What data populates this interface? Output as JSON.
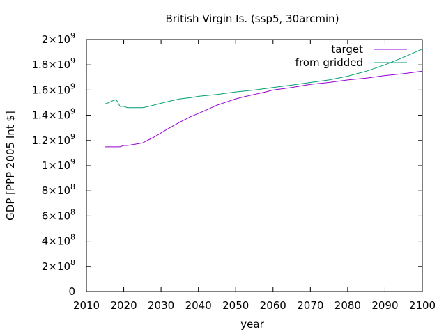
{
  "chart_data": {
    "type": "line",
    "title": "British Virgin Is. (ssp5, 30arcmin)",
    "xlabel": "year",
    "ylabel": "GDP [PPP 2005 Int $]",
    "xlim": [
      2010,
      2100
    ],
    "ylim": [
      0,
      2000000000
    ],
    "xticks": [
      2010,
      2020,
      2030,
      2040,
      2050,
      2060,
      2070,
      2080,
      2090,
      2100
    ],
    "yticks": [
      {
        "value": 0,
        "mantissa": "0",
        "exp": ""
      },
      {
        "value": 200000000,
        "mantissa": "2×10",
        "exp": "8"
      },
      {
        "value": 400000000,
        "mantissa": "4×10",
        "exp": "8"
      },
      {
        "value": 600000000,
        "mantissa": "6×10",
        "exp": "8"
      },
      {
        "value": 800000000,
        "mantissa": "8×10",
        "exp": "8"
      },
      {
        "value": 1000000000,
        "mantissa": "1×10",
        "exp": "9"
      },
      {
        "value": 1200000000,
        "mantissa": "1.2×10",
        "exp": "9"
      },
      {
        "value": 1400000000,
        "mantissa": "1.4×10",
        "exp": "9"
      },
      {
        "value": 1600000000,
        "mantissa": "1.6×10",
        "exp": "9"
      },
      {
        "value": 1800000000,
        "mantissa": "1.8×10",
        "exp": "9"
      },
      {
        "value": 2000000000,
        "mantissa": "2×10",
        "exp": "9"
      }
    ],
    "grid": false,
    "legend_position": "top-right",
    "series": [
      {
        "name": "target",
        "color": "#9400d3",
        "x": [
          2015,
          2016,
          2017,
          2018,
          2019,
          2020,
          2021,
          2022,
          2023,
          2024,
          2025,
          2026,
          2027,
          2028,
          2030,
          2032,
          2035,
          2038,
          2040,
          2042,
          2045,
          2048,
          2050,
          2052,
          2055,
          2058,
          2060,
          2063,
          2065,
          2070,
          2075,
          2080,
          2085,
          2090,
          2095,
          2100
        ],
        "y": [
          1150000000,
          1150000000,
          1150000000,
          1150000000,
          1150000000,
          1160000000,
          1160000000,
          1165000000,
          1170000000,
          1175000000,
          1180000000,
          1195000000,
          1210000000,
          1225000000,
          1260000000,
          1295000000,
          1345000000,
          1390000000,
          1415000000,
          1440000000,
          1480000000,
          1510000000,
          1530000000,
          1545000000,
          1565000000,
          1585000000,
          1600000000,
          1612000000,
          1620000000,
          1645000000,
          1660000000,
          1680000000,
          1695000000,
          1715000000,
          1730000000,
          1750000000
        ]
      },
      {
        "name": "from gridded",
        "color": "#009e73",
        "x": [
          2015,
          2016,
          2017,
          2018,
          2019,
          2020,
          2021,
          2022,
          2023,
          2024,
          2025,
          2026,
          2028,
          2030,
          2032,
          2035,
          2038,
          2040,
          2045,
          2050,
          2055,
          2060,
          2065,
          2070,
          2075,
          2080,
          2085,
          2090,
          2095,
          2100
        ],
        "y": [
          1490000000,
          1500000000,
          1515000000,
          1525000000,
          1470000000,
          1470000000,
          1460000000,
          1460000000,
          1460000000,
          1460000000,
          1460000000,
          1465000000,
          1480000000,
          1495000000,
          1510000000,
          1530000000,
          1540000000,
          1550000000,
          1565000000,
          1585000000,
          1600000000,
          1620000000,
          1640000000,
          1660000000,
          1680000000,
          1710000000,
          1750000000,
          1800000000,
          1860000000,
          1925000000
        ]
      }
    ]
  }
}
